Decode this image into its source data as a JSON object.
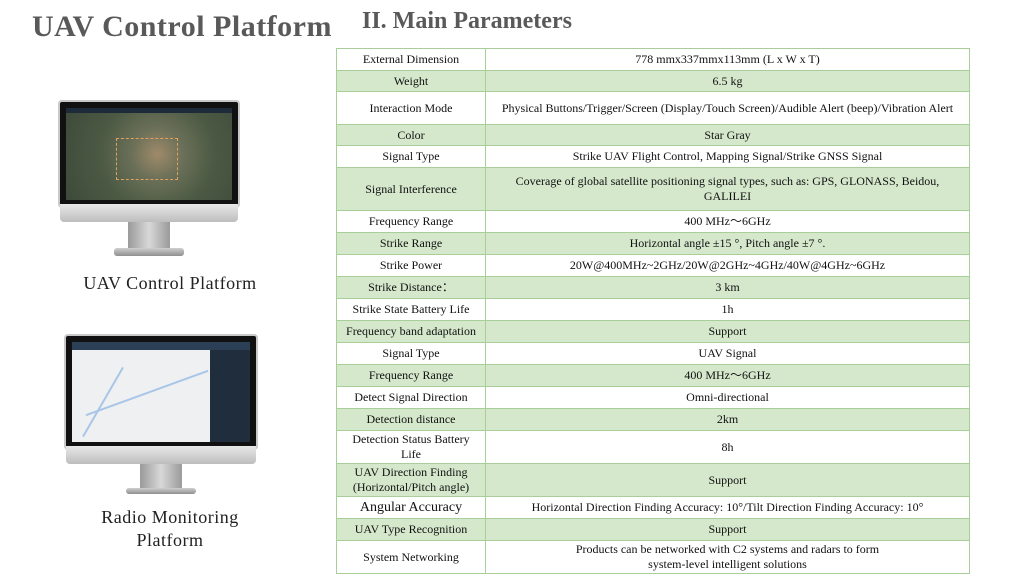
{
  "header": {
    "title": "UAV Control Platform",
    "section_title": "II. Main Parameters"
  },
  "products": [
    {
      "caption": "UAV Control Platform"
    },
    {
      "caption": "Radio Monitoring Platform"
    }
  ],
  "table": {
    "rows": [
      {
        "param": "External Dimension",
        "value": "778 mmx337mmx113mm (L x W x T)"
      },
      {
        "param": "Weight",
        "value": "6.5 kg"
      },
      {
        "param": "Interaction Mode",
        "value": "Physical Buttons/Trigger/Screen (Display/Touch Screen)/Audible Alert (beep)/Vibration Alert"
      },
      {
        "param": "Color",
        "value": "Star Gray"
      },
      {
        "param": "Signal Type",
        "value": "Strike UAV Flight Control, Mapping Signal/Strike GNSS Signal"
      },
      {
        "param": "Signal Interference",
        "value": "Coverage of global satellite positioning signal types, such as: GPS, GLONASS, Beidou, GALILEI"
      },
      {
        "param": "Frequency Range",
        "value": "400 MHz～6GHz"
      },
      {
        "param": "Strike Range",
        "value": "Horizontal angle ±15 °, Pitch angle ±7 °."
      },
      {
        "param": "Strike Power",
        "value": "20W@400MHz~2GHz/20W@2GHz~4GHz/40W@4GHz~6GHz"
      },
      {
        "param": "Strike Distance：",
        "value": "3 km"
      },
      {
        "param": "Strike State Battery Life",
        "value": "1h"
      },
      {
        "param": "Frequency band adaptation",
        "value": "Support"
      },
      {
        "param": "Signal Type",
        "value": "UAV Signal"
      },
      {
        "param": "Frequency Range",
        "value": "400 MHz～6GHz"
      },
      {
        "param": "Detect Signal Direction",
        "value": "Omni-directional"
      },
      {
        "param": "Detection distance",
        "value": "2km"
      },
      {
        "param": "Detection Status Battery Life",
        "value": "8h"
      },
      {
        "param": "UAV Direction Finding (Horizontal/Pitch angle)",
        "value": "Support"
      },
      {
        "param": "Angular Accuracy",
        "value": "Horizontal Direction Finding Accuracy: 10°/Tilt Direction Finding Accuracy: 10°"
      },
      {
        "param": "UAV Type Recognition",
        "value": "Support"
      },
      {
        "param": "System Networking",
        "value": "Products can be networked with C2 systems and radars to form system-level intelligent solutions"
      }
    ]
  },
  "colors": {
    "header_text": "#595959",
    "row_alt": "#d5e8cc",
    "border": "#a8cf9a"
  }
}
